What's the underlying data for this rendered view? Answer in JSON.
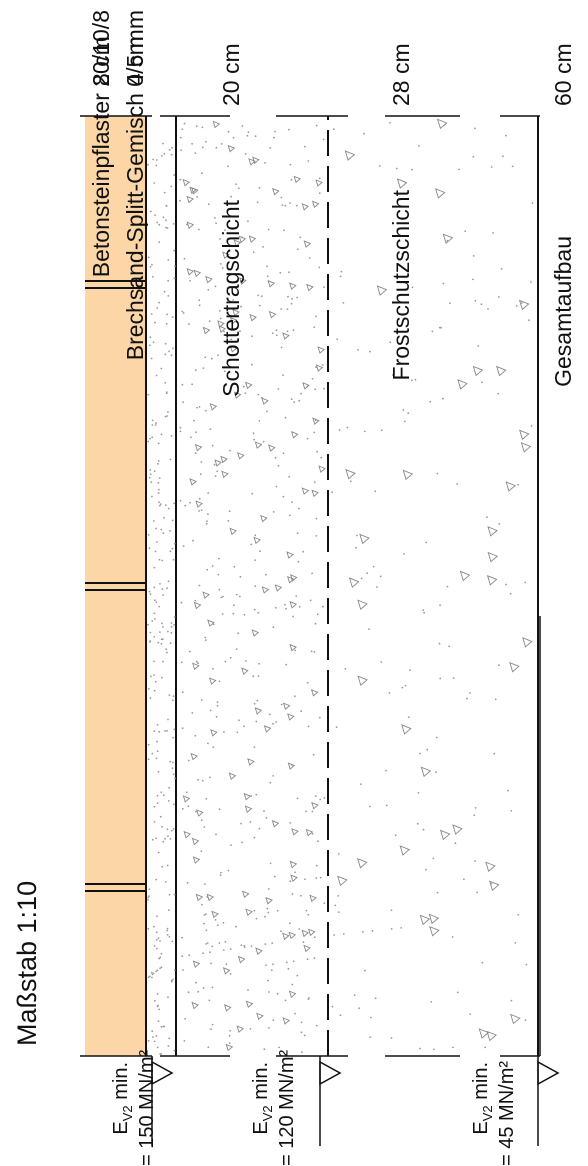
{
  "title": "Maßstab 1:10",
  "layers": [
    {
      "thickness": "8 cm",
      "name": "Betonsteinpflaster 20/10/8"
    },
    {
      "thickness": "4 cm",
      "name": "Brechsand-Splitt-Gemisch 0/5 mm"
    },
    {
      "thickness": "20 cm",
      "name": "Schottertragschicht"
    },
    {
      "thickness": "28 cm",
      "name": "Frostschutzschicht"
    },
    {
      "thickness": "60 cm",
      "name": "Gesamtaufbau"
    }
  ],
  "ev2": [
    {
      "label_main": "E",
      "label_sub": "V2",
      "label_suffix": " min.",
      "value": "= 150 MN/m²"
    },
    {
      "label_main": "E",
      "label_sub": "V2",
      "label_suffix": " min.",
      "value": "= 120 MN/m²"
    },
    {
      "label_main": "E",
      "label_sub": "V2",
      "label_suffix": " min.",
      "value": "=  45 MN/m²"
    }
  ],
  "colors": {
    "paver": "#fdd6a8",
    "line": "#111111",
    "aggregate": "#888888"
  }
}
